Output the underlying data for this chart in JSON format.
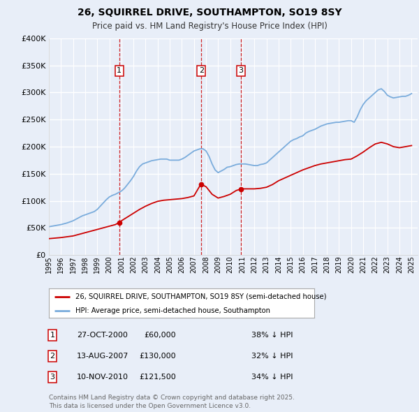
{
  "title": "26, SQUIRREL DRIVE, SOUTHAMPTON, SO19 8SY",
  "subtitle": "Price paid vs. HM Land Registry's House Price Index (HPI)",
  "bg_color": "#e8eef8",
  "plot_bg_color": "#e8eef8",
  "grid_color": "#ffffff",
  "x_min": 1995,
  "x_max": 2025.5,
  "y_min": 0,
  "y_max": 400000,
  "y_ticks": [
    0,
    50000,
    100000,
    150000,
    200000,
    250000,
    300000,
    350000,
    400000
  ],
  "y_tick_labels": [
    "£0",
    "£50K",
    "£100K",
    "£150K",
    "£200K",
    "£250K",
    "£300K",
    "£350K",
    "£400K"
  ],
  "hpi_color": "#7aacdc",
  "price_color": "#cc0000",
  "sale_marker_color": "#cc0000",
  "vline_color": "#cc0000",
  "transactions": [
    {
      "num": 1,
      "date": 2000.82,
      "price": 60000,
      "label": "1"
    },
    {
      "num": 2,
      "date": 2007.62,
      "price": 130000,
      "label": "2"
    },
    {
      "num": 3,
      "date": 2010.86,
      "price": 121500,
      "label": "3"
    }
  ],
  "transaction_table": [
    {
      "num": "1",
      "date": "27-OCT-2000",
      "price": "£60,000",
      "pct": "38% ↓ HPI"
    },
    {
      "num": "2",
      "date": "13-AUG-2007",
      "price": "£130,000",
      "pct": "32% ↓ HPI"
    },
    {
      "num": "3",
      "date": "10-NOV-2010",
      "price": "£121,500",
      "pct": "34% ↓ HPI"
    }
  ],
  "legend_line1": "26, SQUIRREL DRIVE, SOUTHAMPTON, SO19 8SY (semi-detached house)",
  "legend_line2": "HPI: Average price, semi-detached house, Southampton",
  "footer": "Contains HM Land Registry data © Crown copyright and database right 2025.\nThis data is licensed under the Open Government Licence v3.0.",
  "hpi_data_x": [
    1995.0,
    1995.25,
    1995.5,
    1995.75,
    1996.0,
    1996.25,
    1996.5,
    1996.75,
    1997.0,
    1997.25,
    1997.5,
    1997.75,
    1998.0,
    1998.25,
    1998.5,
    1998.75,
    1999.0,
    1999.25,
    1999.5,
    1999.75,
    2000.0,
    2000.25,
    2000.5,
    2000.75,
    2001.0,
    2001.25,
    2001.5,
    2001.75,
    2002.0,
    2002.25,
    2002.5,
    2002.75,
    2003.0,
    2003.25,
    2003.5,
    2003.75,
    2004.0,
    2004.25,
    2004.5,
    2004.75,
    2005.0,
    2005.25,
    2005.5,
    2005.75,
    2006.0,
    2006.25,
    2006.5,
    2006.75,
    2007.0,
    2007.25,
    2007.5,
    2007.75,
    2008.0,
    2008.25,
    2008.5,
    2008.75,
    2009.0,
    2009.25,
    2009.5,
    2009.75,
    2010.0,
    2010.25,
    2010.5,
    2010.75,
    2011.0,
    2011.25,
    2011.5,
    2011.75,
    2012.0,
    2012.25,
    2012.5,
    2012.75,
    2013.0,
    2013.25,
    2013.5,
    2013.75,
    2014.0,
    2014.25,
    2014.5,
    2014.75,
    2015.0,
    2015.25,
    2015.5,
    2015.75,
    2016.0,
    2016.25,
    2016.5,
    2016.75,
    2017.0,
    2017.25,
    2017.5,
    2017.75,
    2018.0,
    2018.25,
    2018.5,
    2018.75,
    2019.0,
    2019.25,
    2019.5,
    2019.75,
    2020.0,
    2020.25,
    2020.5,
    2020.75,
    2021.0,
    2021.25,
    2021.5,
    2021.75,
    2022.0,
    2022.25,
    2022.5,
    2022.75,
    2023.0,
    2023.25,
    2023.5,
    2023.75,
    2024.0,
    2024.25,
    2024.5,
    2024.75,
    2025.0
  ],
  "hpi_data_y": [
    52000,
    53000,
    54000,
    55000,
    56000,
    57500,
    59000,
    61000,
    63000,
    66000,
    69000,
    72000,
    74000,
    76000,
    78000,
    80000,
    84000,
    90000,
    96000,
    102000,
    107000,
    110000,
    112000,
    115000,
    118000,
    123000,
    130000,
    137000,
    145000,
    155000,
    163000,
    168000,
    170000,
    172000,
    174000,
    175000,
    176000,
    177000,
    177000,
    177000,
    175000,
    175000,
    175000,
    175000,
    177000,
    180000,
    184000,
    188000,
    192000,
    194000,
    196000,
    196000,
    192000,
    182000,
    168000,
    157000,
    152000,
    155000,
    158000,
    162000,
    163000,
    165000,
    167000,
    168000,
    168000,
    168000,
    167000,
    166000,
    165000,
    165000,
    167000,
    168000,
    170000,
    175000,
    180000,
    185000,
    190000,
    195000,
    200000,
    205000,
    210000,
    213000,
    215000,
    218000,
    220000,
    225000,
    228000,
    230000,
    232000,
    235000,
    238000,
    240000,
    242000,
    243000,
    244000,
    245000,
    245000,
    246000,
    247000,
    248000,
    248000,
    245000,
    255000,
    268000,
    278000,
    285000,
    290000,
    295000,
    300000,
    305000,
    307000,
    302000,
    295000,
    292000,
    290000,
    291000,
    292000,
    293000,
    293000,
    295000,
    298000
  ],
  "price_data_x": [
    1995.0,
    1995.5,
    1996.0,
    1996.5,
    1997.0,
    1997.5,
    1998.0,
    1998.5,
    1999.0,
    1999.5,
    2000.0,
    2000.5,
    2000.82,
    2001.0,
    2001.5,
    2002.0,
    2002.5,
    2003.0,
    2003.5,
    2004.0,
    2004.5,
    2005.0,
    2005.5,
    2006.0,
    2006.5,
    2007.0,
    2007.5,
    2007.62,
    2008.0,
    2008.5,
    2009.0,
    2009.5,
    2010.0,
    2010.5,
    2010.86,
    2011.0,
    2011.5,
    2012.0,
    2012.5,
    2013.0,
    2013.5,
    2014.0,
    2014.5,
    2015.0,
    2015.5,
    2016.0,
    2016.5,
    2017.0,
    2017.5,
    2018.0,
    2018.5,
    2019.0,
    2019.5,
    2020.0,
    2020.5,
    2021.0,
    2021.5,
    2022.0,
    2022.5,
    2023.0,
    2023.5,
    2024.0,
    2024.5,
    2025.0
  ],
  "price_data_y": [
    30000,
    31000,
    32000,
    33500,
    35000,
    38000,
    41000,
    44000,
    47000,
    50000,
    53000,
    56000,
    60000,
    63000,
    70000,
    77000,
    84000,
    90000,
    95000,
    99000,
    101000,
    102000,
    103000,
    104000,
    106000,
    109000,
    128000,
    130000,
    126000,
    112000,
    105000,
    108000,
    112000,
    119000,
    121500,
    122000,
    122000,
    122000,
    123000,
    125000,
    130000,
    137000,
    142000,
    147000,
    152000,
    157000,
    161000,
    165000,
    168000,
    170000,
    172000,
    174000,
    176000,
    177000,
    183000,
    190000,
    198000,
    205000,
    208000,
    205000,
    200000,
    198000,
    200000,
    202000
  ]
}
